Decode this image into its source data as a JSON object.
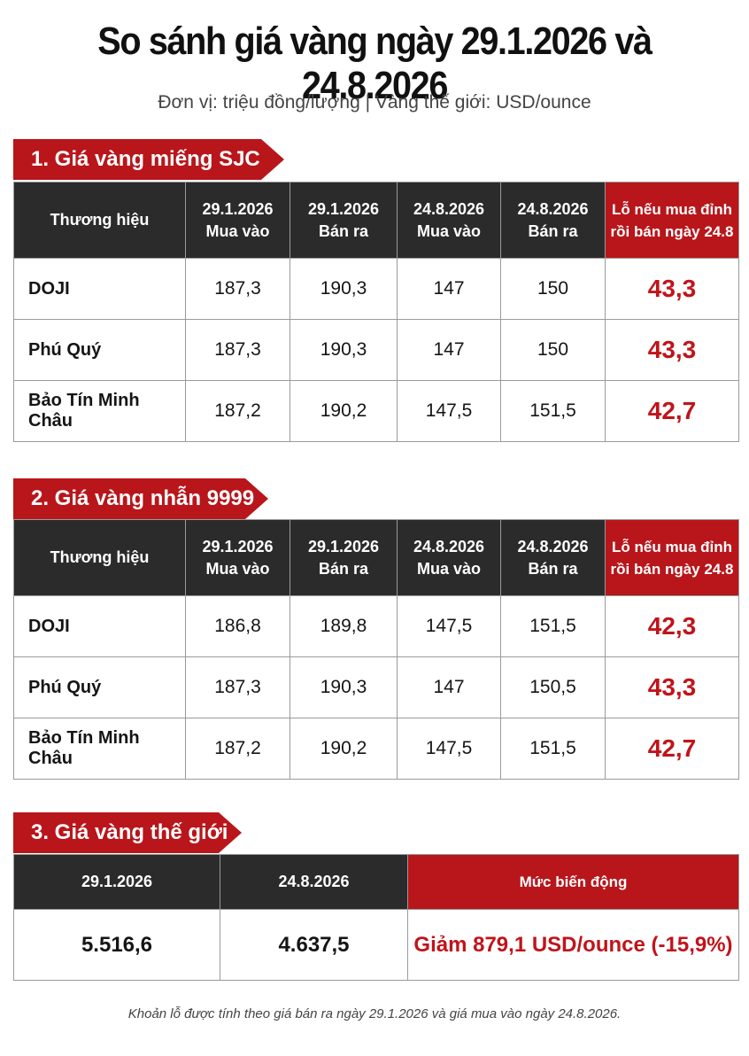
{
  "title": "So sánh giá vàng ngày 29.1.2026 và 24.8.2026",
  "subtitle": "Đơn vị: triệu đồng/lượng | Vàng thế giới: USD/ounce",
  "section1": {
    "label": "1. Giá vàng miếng SJC",
    "headers": {
      "brand": "Thương hiệu",
      "c1a": "29.1.2026",
      "c1b": "Mua vào",
      "c2a": "29.1.2026",
      "c2b": "Bán ra",
      "c3a": "24.8.2026",
      "c3b": "Mua vào",
      "c4a": "24.8.2026",
      "c4b": "Bán ra",
      "lossa": "Lỗ nếu mua đỉnh",
      "lossb": "rồi bán ngày 24.8"
    },
    "rows": [
      {
        "brand": "DOJI",
        "v1": "187,3",
        "v2": "190,3",
        "v3": "147",
        "v4": "150",
        "loss": "43,3"
      },
      {
        "brand": "Phú Quý",
        "v1": "187,3",
        "v2": "190,3",
        "v3": "147",
        "v4": "150",
        "loss": "43,3"
      },
      {
        "brand": "Bảo Tín Minh Châu",
        "v1": "187,2",
        "v2": "190,2",
        "v3": "147,5",
        "v4": "151,5",
        "loss": "42,7"
      }
    ]
  },
  "section2": {
    "label": "2. Giá vàng nhẫn 9999",
    "headers": {
      "brand": "Thương hiệu",
      "c1a": "29.1.2026",
      "c1b": "Mua vào",
      "c2a": "29.1.2026",
      "c2b": "Bán ra",
      "c3a": "24.8.2026",
      "c3b": "Mua vào",
      "c4a": "24.8.2026",
      "c4b": "Bán ra",
      "lossa": "Lỗ nếu mua đỉnh",
      "lossb": "rồi bán ngày 24.8"
    },
    "rows": [
      {
        "brand": "DOJI",
        "v1": "186,8",
        "v2": "189,8",
        "v3": "147,5",
        "v4": "151,5",
        "loss": "42,3"
      },
      {
        "brand": "Phú Quý",
        "v1": "187,3",
        "v2": "190,3",
        "v3": "147",
        "v4": "150,5",
        "loss": "43,3"
      },
      {
        "brand": "Bảo Tín Minh Châu",
        "v1": "187,2",
        "v2": "190,2",
        "v3": "147,5",
        "v4": "151,5",
        "loss": "42,7"
      }
    ]
  },
  "section3": {
    "label": "3. Giá vàng thế giới",
    "headers": {
      "d1": "29.1.2026",
      "d2": "24.8.2026",
      "change": "Mức biến động"
    },
    "values": {
      "d1": "5.516,6",
      "d2": "4.637,5",
      "change": "Giảm 879,1 USD/ounce (-15,9%)"
    }
  },
  "note": "Khoản lỗ được tính theo giá bán ra ngày 29.1.2026 và giá mua vào ngày 24.8.2026.",
  "colors": {
    "accent": "#b8161b",
    "header_dark": "#2b2b2b",
    "loss_text": "#c0141a"
  }
}
